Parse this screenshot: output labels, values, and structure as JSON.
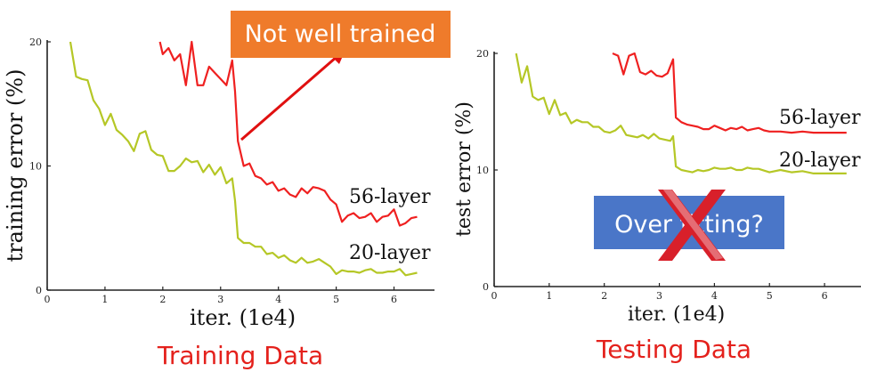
{
  "colors": {
    "red_series": "#ef2020",
    "yellow_series": "#b5c726",
    "caption": "#e4211c",
    "callout_bg": "#ef7b2b",
    "overfit_bg": "#4a76c8",
    "arrow": "#e01010",
    "cross": "#d8202a"
  },
  "callout": {
    "text": "Not well trained"
  },
  "overfit_box": {
    "text": "Over fitting?",
    "covered_by": "red-x-icon"
  },
  "captions": {
    "left": "Training Data",
    "right": "Testing Data"
  },
  "chart_data": [
    {
      "type": "line",
      "xlabel": "iter. (1e4)",
      "ylabel": "training error (%)",
      "xlim": [
        0,
        6.5
      ],
      "ylim": [
        0,
        20
      ],
      "xticks": [
        "0",
        "1",
        "2",
        "3",
        "4",
        "5",
        "6"
      ],
      "yticks": [
        "0",
        "10",
        "20"
      ],
      "grid": false,
      "series": [
        {
          "name": "56-layer",
          "x": [
            1.95,
            2.0,
            2.1,
            2.2,
            2.3,
            2.4,
            2.5,
            2.6,
            2.7,
            2.8,
            2.9,
            3.0,
            3.1,
            3.2,
            3.25,
            3.3,
            3.4,
            3.5,
            3.6,
            3.7,
            3.8,
            3.9,
            4.0,
            4.1,
            4.2,
            4.3,
            4.4,
            4.5,
            4.6,
            4.7,
            4.8,
            4.9,
            5.0,
            5.1,
            5.2,
            5.3,
            5.4,
            5.5,
            5.6,
            5.7,
            5.8,
            5.9,
            6.0,
            6.1,
            6.2,
            6.3,
            6.4
          ],
          "y": [
            20,
            19,
            19.5,
            18.5,
            19,
            16.5,
            20,
            16.5,
            16.5,
            18,
            17.5,
            17,
            16.5,
            18.5,
            16,
            12,
            10,
            10.2,
            9.2,
            9,
            8.5,
            8.7,
            8,
            8.2,
            7.7,
            7.5,
            8.2,
            7.8,
            8.3,
            8.2,
            8,
            7.3,
            6.9,
            5.5,
            6,
            6.2,
            5.8,
            5.9,
            6.2,
            5.5,
            5.9,
            6,
            6.5,
            5.2,
            5.4,
            5.8,
            5.9
          ]
        },
        {
          "name": "20-layer",
          "x": [
            0.4,
            0.5,
            0.6,
            0.7,
            0.8,
            0.9,
            1.0,
            1.1,
            1.2,
            1.3,
            1.4,
            1.5,
            1.6,
            1.7,
            1.8,
            1.9,
            2.0,
            2.1,
            2.2,
            2.3,
            2.4,
            2.5,
            2.6,
            2.7,
            2.8,
            2.9,
            3.0,
            3.1,
            3.2,
            3.25,
            3.3,
            3.4,
            3.5,
            3.6,
            3.7,
            3.8,
            3.9,
            4.0,
            4.1,
            4.2,
            4.3,
            4.4,
            4.5,
            4.6,
            4.7,
            4.8,
            4.9,
            5.0,
            5.1,
            5.2,
            5.3,
            5.4,
            5.5,
            5.6,
            5.7,
            5.8,
            5.9,
            6.0,
            6.1,
            6.2,
            6.3,
            6.4
          ],
          "y": [
            20,
            17.2,
            17,
            16.9,
            15.3,
            14.6,
            13.3,
            14.2,
            12.9,
            12.5,
            12,
            11.2,
            12.6,
            12.8,
            11.3,
            10.9,
            10.8,
            9.6,
            9.6,
            10,
            10.6,
            10.3,
            10.4,
            9.5,
            10.1,
            9.3,
            9.9,
            8.6,
            9,
            7.2,
            4.2,
            3.8,
            3.8,
            3.5,
            3.5,
            2.9,
            3,
            2.6,
            2.8,
            2.4,
            2.2,
            2.6,
            2.2,
            2.3,
            2.5,
            2.2,
            1.9,
            1.3,
            1.6,
            1.5,
            1.5,
            1.4,
            1.6,
            1.7,
            1.4,
            1.4,
            1.5,
            1.5,
            1.7,
            1.2,
            1.3,
            1.4
          ]
        }
      ]
    },
    {
      "type": "line",
      "xlabel": "iter. (1e4)",
      "ylabel": "test error (%)",
      "xlim": [
        0,
        6.5
      ],
      "ylim": [
        0,
        20
      ],
      "xticks": [
        "0",
        "1",
        "2",
        "3",
        "4",
        "5",
        "6"
      ],
      "yticks": [
        "0",
        "10",
        "20"
      ],
      "grid": false,
      "series": [
        {
          "name": "56-layer",
          "x": [
            2.15,
            2.25,
            2.35,
            2.45,
            2.55,
            2.65,
            2.75,
            2.85,
            2.95,
            3.05,
            3.15,
            3.25,
            3.3,
            3.4,
            3.5,
            3.6,
            3.7,
            3.8,
            3.9,
            4.0,
            4.1,
            4.2,
            4.3,
            4.4,
            4.5,
            4.6,
            4.7,
            4.8,
            4.9,
            5.0,
            5.2,
            5.4,
            5.6,
            5.8,
            6.0,
            6.2,
            6.4
          ],
          "y": [
            20,
            19.8,
            18.2,
            19.8,
            20,
            18.4,
            18.2,
            18.5,
            18.1,
            18,
            18.3,
            19.5,
            14.5,
            14.1,
            13.9,
            13.8,
            13.7,
            13.5,
            13.5,
            13.8,
            13.6,
            13.4,
            13.6,
            13.5,
            13.7,
            13.4,
            13.5,
            13.6,
            13.4,
            13.3,
            13.3,
            13.2,
            13.3,
            13.2,
            13.2,
            13.2,
            13.2
          ]
        },
        {
          "name": "20-layer",
          "x": [
            0.4,
            0.5,
            0.6,
            0.7,
            0.8,
            0.9,
            1.0,
            1.1,
            1.2,
            1.3,
            1.4,
            1.5,
            1.6,
            1.7,
            1.8,
            1.9,
            2.0,
            2.1,
            2.2,
            2.3,
            2.4,
            2.5,
            2.6,
            2.7,
            2.8,
            2.9,
            3.0,
            3.1,
            3.2,
            3.25,
            3.3,
            3.4,
            3.5,
            3.6,
            3.7,
            3.8,
            3.9,
            4.0,
            4.1,
            4.2,
            4.3,
            4.4,
            4.5,
            4.6,
            4.7,
            4.8,
            5.0,
            5.2,
            5.4,
            5.6,
            5.8,
            6.0,
            6.2,
            6.4
          ],
          "y": [
            20,
            17.5,
            18.9,
            16.3,
            16,
            16.2,
            14.8,
            16,
            14.7,
            14.9,
            14,
            14.3,
            14.1,
            14.1,
            13.7,
            13.7,
            13.3,
            13.2,
            13.4,
            13.8,
            13,
            12.9,
            12.8,
            13,
            12.7,
            13.1,
            12.7,
            12.6,
            12.5,
            12.9,
            10.3,
            10,
            9.9,
            9.8,
            10,
            9.9,
            10,
            10.2,
            10.1,
            10.1,
            10.2,
            10,
            10,
            10.2,
            10.1,
            10.1,
            9.8,
            10,
            9.8,
            9.9,
            9.7,
            9.7,
            9.7,
            9.7
          ]
        }
      ]
    }
  ]
}
